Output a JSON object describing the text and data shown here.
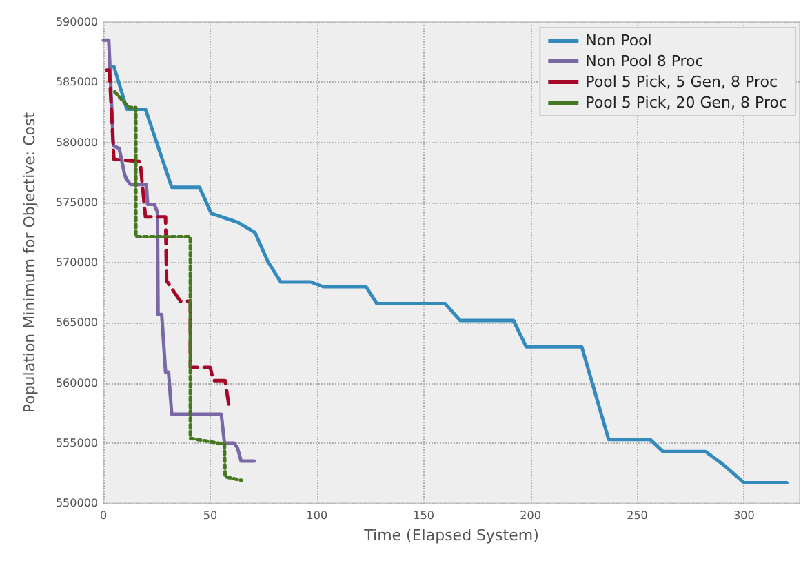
{
  "chart_data": {
    "type": "line",
    "xlabel": "Time (Elapsed System)",
    "ylabel": "Population Minimum for Objective: Cost",
    "xlim": [
      0,
      326
    ],
    "xticks": [
      0,
      50,
      100,
      150,
      200,
      250,
      300
    ],
    "ylim": [
      550000,
      590000
    ],
    "yticks": [
      550000,
      555000,
      560000,
      565000,
      570000,
      575000,
      580000,
      585000,
      590000
    ],
    "grid": true,
    "legend": "top right",
    "series": [
      {
        "name": "Non Pool",
        "color": "#348abd",
        "line_style": "solid",
        "x": [
          4.9,
          11,
          19.7,
          32,
          45,
          50.5,
          63,
          71,
          77,
          83,
          97,
          103,
          123,
          128,
          160,
          167,
          192,
          198,
          224,
          236.6,
          256,
          262,
          282,
          290,
          300,
          320
        ],
        "values": [
          586300,
          582750,
          582750,
          576270,
          576270,
          574100,
          573350,
          572500,
          570100,
          568400,
          568400,
          568000,
          568000,
          566600,
          566600,
          565200,
          565200,
          563000,
          563000,
          555300,
          555300,
          554300,
          554300,
          553250,
          551700,
          551700
        ]
      },
      {
        "name": "Non Pool 8 Proc",
        "color": "#7a68a6",
        "line_style": "solid",
        "x": [
          0,
          2.5,
          4.7,
          7.4,
          9.9,
          10.6,
          12.7,
          20.1,
          20.7,
          23.8,
          25.3,
          25.6,
          27.3,
          29.1,
          30.5,
          32,
          55.2,
          56.7,
          61.2,
          62.8,
          64.5,
          70.6
        ],
        "values": [
          588500,
          588500,
          579700,
          579500,
          577350,
          577000,
          576500,
          576500,
          574850,
          574850,
          574200,
          565700,
          565700,
          560900,
          560900,
          557400,
          557400,
          555000,
          555000,
          554600,
          553500,
          553500
        ]
      },
      {
        "name": "Pool 5 Pick, 5 Gen, 8 Proc",
        "color": "#a60628",
        "line_style": "dashed",
        "x": [
          1.6,
          2.8,
          4.9,
          17.2,
          17.2,
          19.7,
          29.1,
          29.6,
          36,
          40.7,
          40.7,
          50,
          51.5,
          57,
          58.7
        ],
        "values": [
          586000,
          586000,
          578600,
          578400,
          578400,
          573800,
          573800,
          568500,
          566800,
          566800,
          561300,
          561300,
          560200,
          560200,
          558200
        ]
      },
      {
        "name": "Pool 5 Pick, 20 Gen, 8 Proc",
        "color": "#467821",
        "line_style": "dotted",
        "x": [
          5.3,
          11.9,
          15.2,
          15.2,
          40.7,
          40.7,
          56.7,
          57,
          64.7
        ],
        "values": [
          584200,
          582900,
          582900,
          572150,
          572150,
          555400,
          554900,
          552200,
          551900
        ]
      }
    ]
  }
}
